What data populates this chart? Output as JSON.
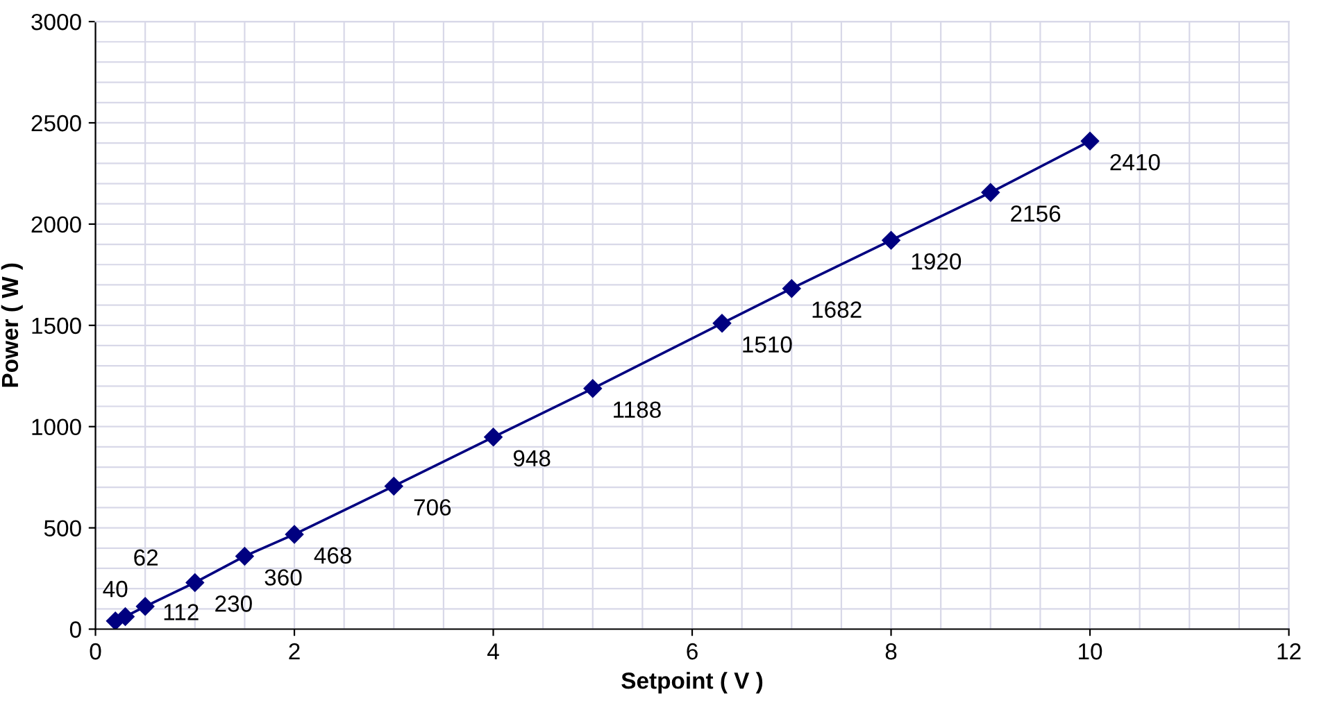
{
  "chart_data": {
    "type": "line",
    "xlabel": "Setpoint ( V )",
    "ylabel": "Power ( W )",
    "x": [
      0.2,
      0.3,
      0.5,
      1,
      1.5,
      2,
      3,
      4,
      5,
      6.3,
      7,
      8,
      9,
      10
    ],
    "series": [
      {
        "color": "#000080",
        "values": [
          40,
          62,
          112,
          230,
          360,
          468,
          706,
          948,
          1188,
          1510,
          1682,
          1920,
          2156,
          2410
        ]
      }
    ],
    "data_labels": true,
    "marker": "diamond",
    "line_style": "solid",
    "xlim": [
      0,
      12
    ],
    "xticks": [
      0,
      2,
      4,
      6,
      8,
      10,
      12
    ],
    "ylim": [
      0,
      3000
    ],
    "yticks": [
      0,
      500,
      1000,
      1500,
      2000,
      2500,
      3000
    ],
    "grid": true,
    "legend": false
  }
}
